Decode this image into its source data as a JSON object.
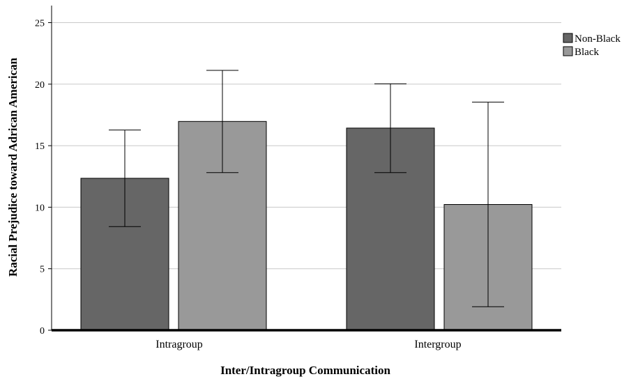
{
  "chart_data": {
    "type": "bar",
    "title": "",
    "xlabel": "Inter/Intragroup Communication",
    "ylabel": "Racial Prejudice toward Adrican American",
    "categories": [
      "Intragroup",
      "Intergroup"
    ],
    "series": [
      {
        "name": "Non-Black",
        "color": "#666666",
        "values": [
          12.35,
          16.43
        ],
        "error_low": [
          8.42,
          12.81
        ],
        "error_high": [
          16.27,
          20.03
        ]
      },
      {
        "name": "Black",
        "color": "#999999",
        "values": [
          16.97,
          10.22
        ],
        "error_low": [
          12.81,
          1.91
        ],
        "error_high": [
          21.12,
          18.54
        ]
      }
    ],
    "yticks": [
      0,
      5,
      10,
      15,
      20,
      25
    ],
    "ylim": [
      0,
      26.2
    ],
    "grid": true,
    "legend_position": "top-right"
  }
}
